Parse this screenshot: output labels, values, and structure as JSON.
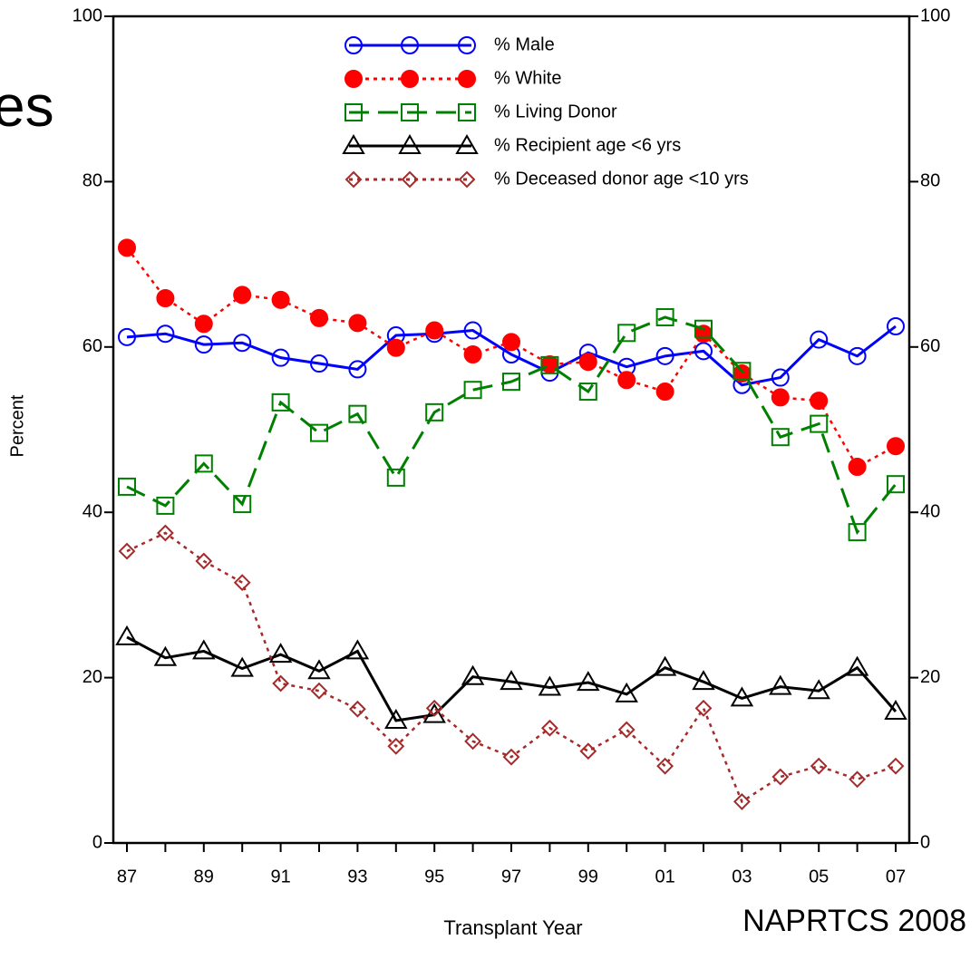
{
  "slide": {
    "title_fragment": "es",
    "source": "NAPRTCS 2008"
  },
  "chart_data": {
    "type": "line",
    "xlabel": "Transplant Year",
    "ylabel": "Percent",
    "categories": [
      "87",
      null,
      "89",
      null,
      "91",
      null,
      "93",
      null,
      "95",
      null,
      "97",
      null,
      "99",
      null,
      "01",
      null,
      "03",
      null,
      "05",
      null,
      "07"
    ],
    "ylim": [
      0,
      100
    ],
    "yticks": [
      0,
      20,
      40,
      60,
      80,
      100
    ],
    "y2lim": [
      0,
      100
    ],
    "y2ticks": [
      0,
      20,
      40,
      60,
      80,
      100
    ],
    "series": [
      {
        "name": "% Male",
        "color": "#0000ff",
        "marker": "circle",
        "line_style": "solid",
        "values": [
          61.2,
          61.6,
          60.3,
          60.5,
          58.7,
          58,
          57.3,
          61.4,
          61.6,
          62,
          59.1,
          56.9,
          59.3,
          57.6,
          58.9,
          59.5,
          55.4,
          56.3,
          60.9,
          58.9,
          62.5
        ]
      },
      {
        "name": "% White",
        "color": "#ff0000",
        "marker": "filled-circle",
        "line_style": "dotted",
        "values": [
          72,
          65.9,
          62.8,
          66.3,
          65.7,
          63.5,
          62.9,
          59.9,
          62,
          59.1,
          60.6,
          57.9,
          58.2,
          56,
          54.6,
          61.6,
          56.8,
          53.9,
          53.5,
          45.5,
          48
        ]
      },
      {
        "name": "% Living Donor",
        "color": "#008000",
        "marker": "square",
        "line_style": "dashed",
        "values": [
          43.1,
          40.8,
          45.9,
          41,
          53.3,
          49.6,
          51.9,
          44.2,
          52.1,
          54.8,
          55.8,
          57.8,
          54.6,
          61.7,
          63.6,
          62.2,
          57.1,
          49.1,
          50.7,
          37.6,
          43.4
        ]
      },
      {
        "name": "% Recipient age <6 yrs",
        "color": "#000000",
        "marker": "triangle",
        "line_style": "solid",
        "values": [
          24.9,
          22.4,
          23.2,
          21.1,
          22.8,
          20.8,
          23.2,
          14.8,
          15.5,
          20.1,
          19.5,
          18.8,
          19.4,
          18,
          21.2,
          19.5,
          17.5,
          18.9,
          18.4,
          21.2,
          15.9
        ]
      },
      {
        "name": "% Deceased donor age <10 yrs",
        "color": "#a52a2a",
        "marker": "diamond",
        "line_style": "dotted",
        "values": [
          35.3,
          37.5,
          34.1,
          31.5,
          19.3,
          18.4,
          16.2,
          11.7,
          16.3,
          12.3,
          10.4,
          13.9,
          11.1,
          13.7,
          9.3,
          16.3,
          5,
          8,
          9.3,
          7.7,
          9.3
        ]
      }
    ]
  }
}
